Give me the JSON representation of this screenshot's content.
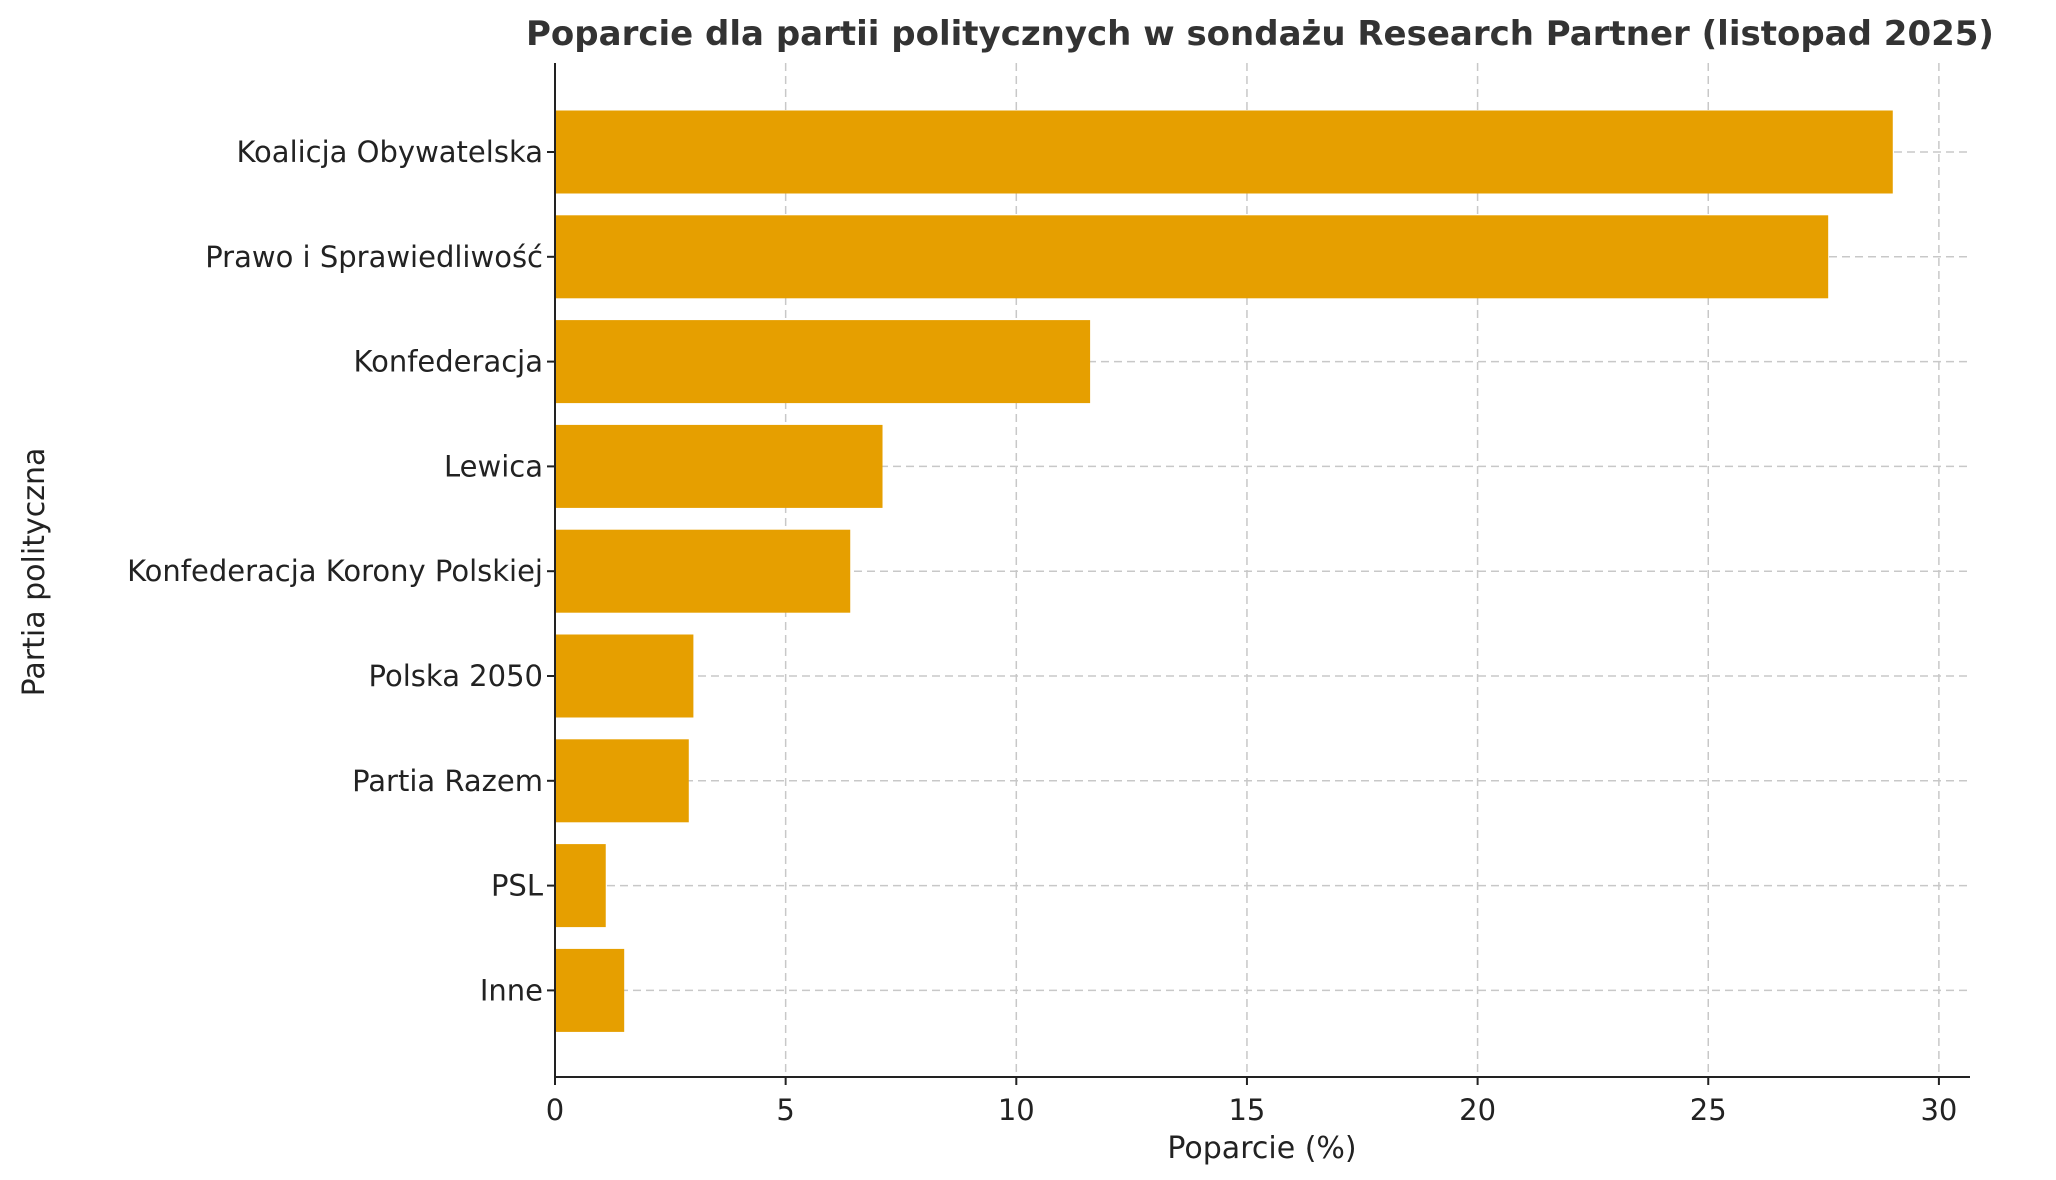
{
  "chart_data": {
    "type": "bar",
    "orientation": "horizontal",
    "title": "Poparcie dla partii politycznych w sondażu Research Partner (listopad 2025)",
    "xlabel": "Poparcie (%)",
    "ylabel": "Partia polityczna",
    "categories": [
      "Koalicja Obywatelska",
      "Prawo i Sprawiedliwość",
      "Konfederacja",
      "Lewica",
      "Konfederacja Korony Polskiej",
      "Polska 2050",
      "Partia Razem",
      "PSL",
      "Inne"
    ],
    "values": [
      29.0,
      27.6,
      11.6,
      7.1,
      6.4,
      3.0,
      2.9,
      1.1,
      1.5
    ],
    "xlim": [
      0,
      30.5
    ],
    "xticks": [
      "0",
      "5",
      "10",
      "15",
      "20",
      "25",
      "30"
    ],
    "grid": true,
    "bar_color": "#E69F00"
  }
}
